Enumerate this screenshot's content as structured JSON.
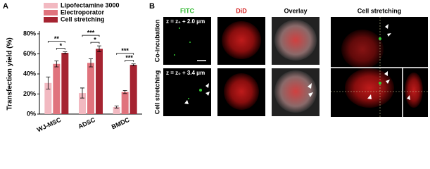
{
  "panel_labels": [
    "A",
    "B"
  ],
  "chart_data": {
    "type": "bar",
    "y_label": "Transfection yield (%)",
    "categories": [
      "WJ-MSC",
      "ADSC",
      "BMDC"
    ],
    "series": [
      {
        "name": "Lipofectamine 3000",
        "color": "#f2b9c1",
        "values": [
          31,
          21,
          7
        ],
        "errors": [
          6,
          5,
          1
        ]
      },
      {
        "name": "Electroporator",
        "color": "#e0737d",
        "values": [
          50,
          51,
          22
        ],
        "errors": [
          3,
          4,
          1.5
        ]
      },
      {
        "name": "Cell stretching",
        "color": "#a52331",
        "values": [
          61,
          65,
          49
        ],
        "errors": [
          1,
          3,
          1
        ]
      }
    ],
    "ylim": [
      0,
      80
    ],
    "yticks": [
      {
        "value": 0,
        "label": "0%"
      },
      {
        "value": 20,
        "label": "20%"
      },
      {
        "value": 40,
        "label": "40%"
      },
      {
        "value": 60,
        "label": "60%"
      },
      {
        "value": 80,
        "label": "80%"
      }
    ],
    "annotations": [
      {
        "text": "**",
        "group": 0,
        "pair": [
          0,
          2
        ]
      },
      {
        "text": "*",
        "group": 0,
        "pair": [
          1,
          2
        ]
      },
      {
        "text": "***",
        "group": 1,
        "pair": [
          0,
          2
        ]
      },
      {
        "text": "*",
        "group": 1,
        "pair": [
          1,
          2
        ]
      },
      {
        "text": "***",
        "group": 2,
        "pair": [
          0,
          2
        ]
      },
      {
        "text": "***",
        "group": 2,
        "pair": [
          1,
          2
        ]
      }
    ]
  },
  "panel_b": {
    "columns": [
      "FITC",
      "DiD",
      "Overlay",
      "Cell stretching"
    ],
    "rows": [
      "Co-incubation",
      "Cell stretching"
    ],
    "depths": [
      "z = z₀ + 2.0 μm",
      "z = z₀ + 3.4 μm"
    ]
  }
}
